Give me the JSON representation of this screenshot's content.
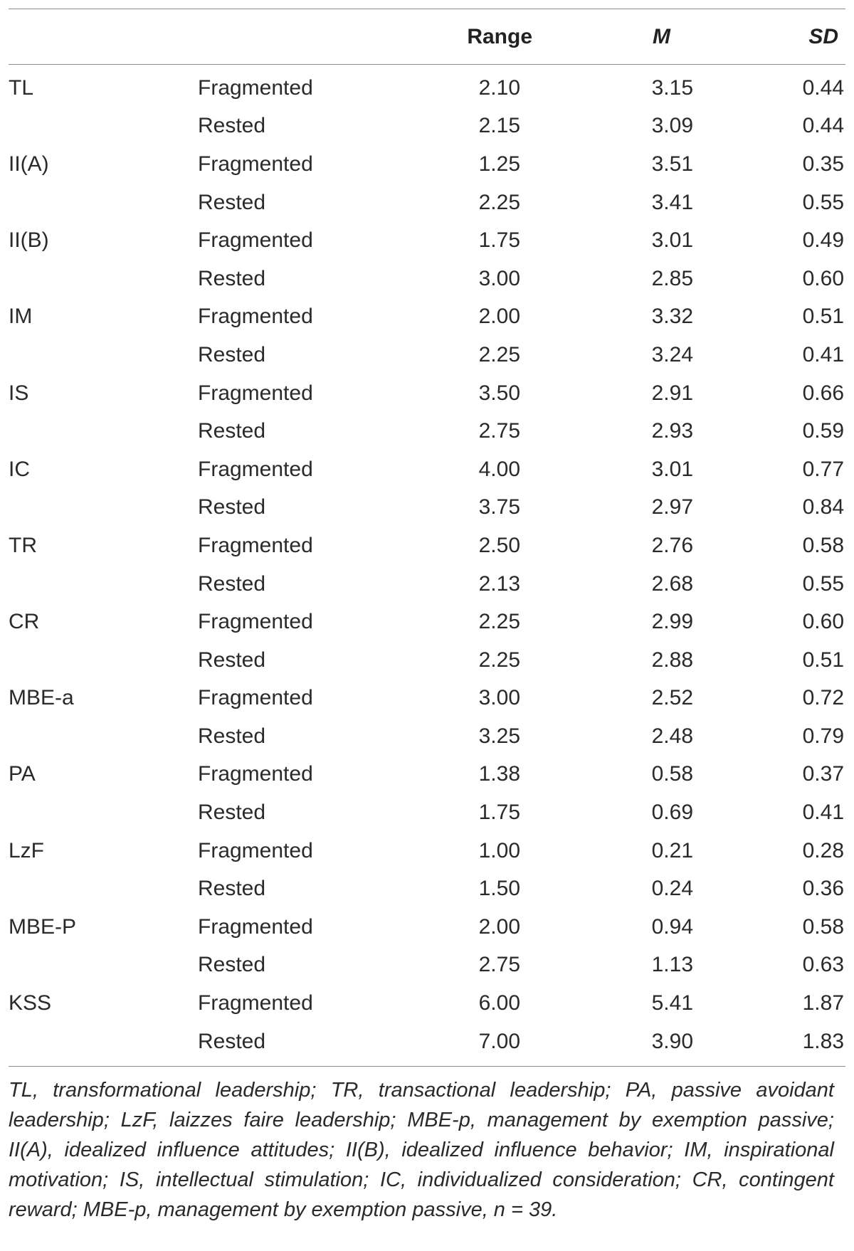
{
  "table": {
    "headers": {
      "variable": "",
      "condition": "",
      "range": "Range",
      "mean": "M",
      "sd": "SD"
    },
    "rows": [
      {
        "variable": "TL",
        "condition": "Fragmented",
        "range": "2.10",
        "mean": "3.15",
        "sd": "0.44"
      },
      {
        "variable": "",
        "condition": "Rested",
        "range": "2.15",
        "mean": "3.09",
        "sd": "0.44"
      },
      {
        "variable": "II(A)",
        "condition": "Fragmented",
        "range": "1.25",
        "mean": "3.51",
        "sd": "0.35"
      },
      {
        "variable": "",
        "condition": "Rested",
        "range": "2.25",
        "mean": "3.41",
        "sd": "0.55"
      },
      {
        "variable": "II(B)",
        "condition": "Fragmented",
        "range": "1.75",
        "mean": "3.01",
        "sd": "0.49"
      },
      {
        "variable": "",
        "condition": "Rested",
        "range": "3.00",
        "mean": "2.85",
        "sd": "0.60"
      },
      {
        "variable": "IM",
        "condition": "Fragmented",
        "range": "2.00",
        "mean": "3.32",
        "sd": "0.51"
      },
      {
        "variable": "",
        "condition": "Rested",
        "range": "2.25",
        "mean": "3.24",
        "sd": "0.41"
      },
      {
        "variable": "IS",
        "condition": "Fragmented",
        "range": "3.50",
        "mean": "2.91",
        "sd": "0.66"
      },
      {
        "variable": "",
        "condition": "Rested",
        "range": "2.75",
        "mean": "2.93",
        "sd": "0.59"
      },
      {
        "variable": "IC",
        "condition": "Fragmented",
        "range": "4.00",
        "mean": "3.01",
        "sd": "0.77"
      },
      {
        "variable": "",
        "condition": "Rested",
        "range": "3.75",
        "mean": "2.97",
        "sd": "0.84"
      },
      {
        "variable": "TR",
        "condition": "Fragmented",
        "range": "2.50",
        "mean": "2.76",
        "sd": "0.58"
      },
      {
        "variable": "",
        "condition": "Rested",
        "range": "2.13",
        "mean": "2.68",
        "sd": "0.55"
      },
      {
        "variable": "CR",
        "condition": "Fragmented",
        "range": "2.25",
        "mean": "2.99",
        "sd": "0.60"
      },
      {
        "variable": "",
        "condition": "Rested",
        "range": "2.25",
        "mean": "2.88",
        "sd": "0.51"
      },
      {
        "variable": "MBE-a",
        "condition": "Fragmented",
        "range": "3.00",
        "mean": "2.52",
        "sd": "0.72"
      },
      {
        "variable": "",
        "condition": "Rested",
        "range": "3.25",
        "mean": "2.48",
        "sd": "0.79"
      },
      {
        "variable": "PA",
        "condition": "Fragmented",
        "range": "1.38",
        "mean": "0.58",
        "sd": "0.37"
      },
      {
        "variable": "",
        "condition": "Rested",
        "range": "1.75",
        "mean": "0.69",
        "sd": "0.41"
      },
      {
        "variable": "LzF",
        "condition": "Fragmented",
        "range": "1.00",
        "mean": "0.21",
        "sd": "0.28"
      },
      {
        "variable": "",
        "condition": "Rested",
        "range": "1.50",
        "mean": "0.24",
        "sd": "0.36"
      },
      {
        "variable": "MBE-P",
        "condition": "Fragmented",
        "range": "2.00",
        "mean": "0.94",
        "sd": "0.58"
      },
      {
        "variable": "",
        "condition": "Rested",
        "range": "2.75",
        "mean": "1.13",
        "sd": "0.63"
      },
      {
        "variable": "KSS",
        "condition": "Fragmented",
        "range": "6.00",
        "mean": "5.41",
        "sd": "1.87"
      },
      {
        "variable": "",
        "condition": "Rested",
        "range": "7.00",
        "mean": "3.90",
        "sd": "1.83"
      }
    ]
  },
  "footnote": "TL, transformational leadership; TR, transactional leadership; PA, passive avoidant leadership; LzF, laizzes faire leadership; MBE-p, management by exemption passive; II(A), idealized influence attitudes; II(B), idealized influence behavior; IM, inspirational motivation; IS, intellectual stimulation; IC, individualized consideration; CR, contingent reward; MBE-p, management by exemption passive, n = 39."
}
